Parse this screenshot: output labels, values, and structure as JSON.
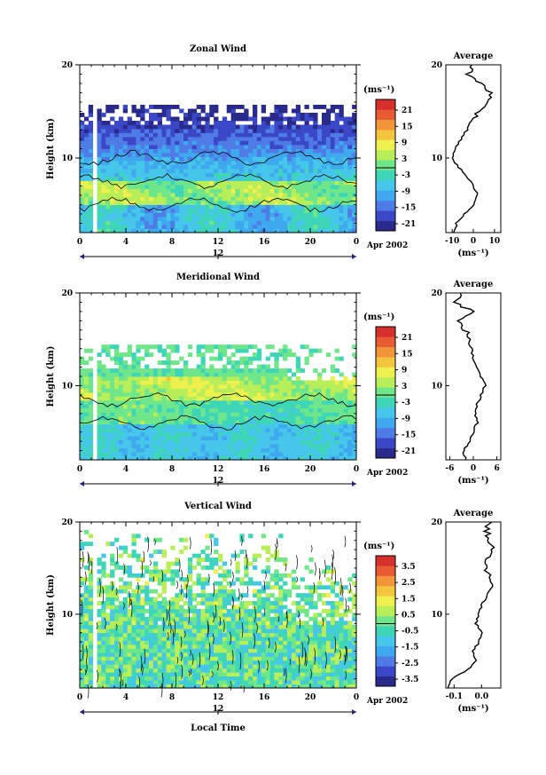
{
  "colors": {
    "scale": [
      "#2a2a8c",
      "#3a48c8",
      "#4f7be6",
      "#3fa8ee",
      "#45c6ea",
      "#3fd6b8",
      "#6fe68a",
      "#b8ee5a",
      "#eef04e",
      "#f4c63e",
      "#f2943a",
      "#e85a32",
      "#d6302c"
    ],
    "contour": "#000000",
    "background": "#ffffff"
  },
  "chart_data": [
    {
      "type": "heatmap",
      "title": "Zonal Wind",
      "ylabel": "Height (km)",
      "yticks": [
        "20",
        "10"
      ],
      "ylim": [
        2,
        20
      ],
      "xticks": [
        "0",
        "4",
        "8",
        "12",
        "16",
        "20",
        "0"
      ],
      "xlim": [
        0,
        24
      ],
      "date_axis": {
        "center_label": "12",
        "right_label": "Apr 2002"
      },
      "colorbar": {
        "unit": "(ms⁻¹)",
        "ticks": [
          "21",
          "15",
          "9",
          "3",
          "-3",
          "-9",
          "-15",
          "-21"
        ],
        "range": [
          -24,
          24
        ]
      },
      "profile": {
        "title": "Average",
        "xlabel": "(ms⁻¹)",
        "xticks": [
          "-10",
          "0",
          "10"
        ],
        "xlim": [
          -13,
          13
        ],
        "yticks": [
          "20",
          "10"
        ],
        "heights": [
          2,
          3,
          4,
          5,
          6,
          7,
          8,
          9,
          10,
          11,
          12,
          13,
          14,
          15,
          16,
          17,
          18,
          19,
          20
        ],
        "values": [
          -9,
          -8,
          -4,
          0,
          2,
          0,
          -3,
          -7,
          -10,
          -9,
          -6,
          -3,
          -1,
          2,
          6,
          8,
          3,
          -2,
          -1
        ]
      }
    },
    {
      "type": "heatmap",
      "title": "Meridional Wind",
      "ylabel": "Height (km)",
      "yticks": [
        "20",
        "10"
      ],
      "ylim": [
        2,
        20
      ],
      "xticks": [
        "0",
        "4",
        "8",
        "12",
        "16",
        "20",
        "0"
      ],
      "xlim": [
        0,
        24
      ],
      "date_axis": {
        "center_label": "12",
        "right_label": "Apr 2002"
      },
      "colorbar": {
        "unit": "(ms⁻¹)",
        "ticks": [
          "21",
          "15",
          "9",
          "3",
          "-3",
          "-9",
          "-15",
          "-21"
        ],
        "range": [
          -24,
          24
        ]
      },
      "profile": {
        "title": "Average",
        "xlabel": "(ms⁻¹)",
        "xticks": [
          "-6",
          "0",
          "6"
        ],
        "xlim": [
          -7,
          7
        ],
        "yticks": [
          "20",
          "10"
        ],
        "heights": [
          2,
          3,
          4,
          5,
          6,
          7,
          8,
          9,
          10,
          11,
          12,
          13,
          14,
          15,
          16,
          17,
          18,
          19,
          20
        ],
        "values": [
          -2,
          -2.5,
          -1,
          0,
          1,
          0.5,
          1,
          2,
          3,
          2,
          1,
          0,
          -0.5,
          -1,
          -2,
          -4,
          0,
          -5,
          -3
        ]
      }
    },
    {
      "type": "heatmap",
      "title": "Vertical Wind",
      "ylabel": "Height (km)",
      "xlabel": "Local Time",
      "yticks": [
        "20",
        "10"
      ],
      "ylim": [
        2,
        20
      ],
      "xticks": [
        "0",
        "4",
        "8",
        "12",
        "16",
        "20",
        "0"
      ],
      "xlim": [
        0,
        24
      ],
      "date_axis": {
        "center_label": "12",
        "right_label": "Apr 2002"
      },
      "colorbar": {
        "unit": "(ms⁻¹)",
        "ticks": [
          "3.5",
          "2.5",
          "1.5",
          "0.5",
          "-0.5",
          "-1.5",
          "-2.5",
          "-3.5"
        ],
        "range": [
          -4,
          4
        ]
      },
      "profile": {
        "title": "Average",
        "xlabel": "(ms⁻¹)",
        "xticks": [
          "-0.1",
          "0.0"
        ],
        "xlim": [
          -0.13,
          0.07
        ],
        "yticks": [
          "20",
          "10"
        ],
        "heights": [
          2,
          3,
          4,
          5,
          6,
          7,
          8,
          9,
          10,
          11,
          12,
          13,
          14,
          15,
          16,
          17,
          18,
          19,
          20
        ],
        "values": [
          -0.12,
          -0.11,
          -0.05,
          -0.02,
          -0.03,
          -0.01,
          0.0,
          -0.02,
          -0.01,
          0.0,
          0.02,
          0.04,
          0.03,
          0.01,
          0.02,
          0.04,
          0.03,
          0.02,
          0.03
        ]
      }
    }
  ]
}
